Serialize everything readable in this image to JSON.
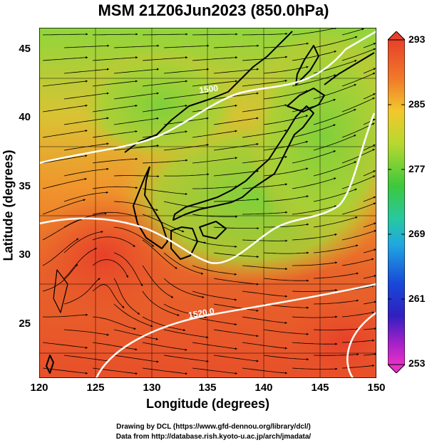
{
  "title": "MSM 21Z06Jun2023 (850.0hPa)",
  "axes": {
    "xlabel": "Longitude (degrees)",
    "ylabel": "Latitude  (degrees)",
    "xticks": [
      "120",
      "125",
      "130",
      "135",
      "140",
      "145",
      "150"
    ],
    "yticks": [
      "25",
      "30",
      "35",
      "40",
      "45"
    ]
  },
  "colorbar": {
    "ticks": [
      "293",
      "285",
      "277",
      "269",
      "261",
      "253"
    ],
    "range": [
      253,
      293
    ]
  },
  "contour_labels": [
    "1500",
    "1520.0"
  ],
  "credits": {
    "line1": "Drawing by DCL (https://www.gfd-dennou.org/library/dcl/)",
    "line2": "Data from http://database.rish.kyoto-u.ac.jp/arch/jmadata/"
  },
  "colors": {
    "warm": "#e8502a",
    "mid": "#f29a2a",
    "cool": "#7ed23a",
    "coast": "#000000",
    "contour": "#ffffff"
  }
}
